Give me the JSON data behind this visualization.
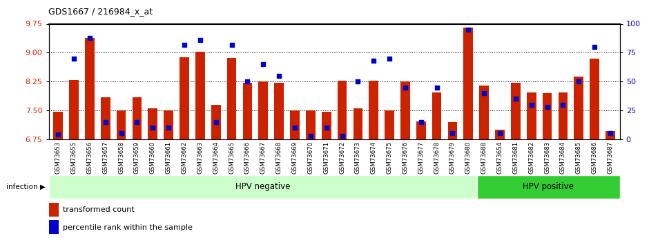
{
  "title": "GDS1667 / 216984_x_at",
  "samples": [
    "GSM73653",
    "GSM73655",
    "GSM73656",
    "GSM73657",
    "GSM73658",
    "GSM73659",
    "GSM73660",
    "GSM73661",
    "GSM73662",
    "GSM73663",
    "GSM73664",
    "GSM73665",
    "GSM73666",
    "GSM73667",
    "GSM73668",
    "GSM73669",
    "GSM73670",
    "GSM73671",
    "GSM73672",
    "GSM73673",
    "GSM73674",
    "GSM73675",
    "GSM73676",
    "GSM73677",
    "GSM73678",
    "GSM73679",
    "GSM73680",
    "GSM73688",
    "GSM73654",
    "GSM73681",
    "GSM73682",
    "GSM73683",
    "GSM73684",
    "GSM73685",
    "GSM73686",
    "GSM73687"
  ],
  "red_values": [
    7.47,
    8.28,
    9.38,
    7.84,
    7.5,
    7.84,
    7.55,
    7.5,
    8.88,
    9.02,
    7.65,
    8.87,
    8.22,
    8.25,
    8.22,
    7.5,
    7.5,
    7.47,
    8.27,
    7.55,
    8.27,
    7.5,
    8.25,
    7.22,
    7.97,
    7.2,
    9.65,
    8.15,
    7.0,
    8.22,
    7.97,
    7.95,
    7.97,
    8.38,
    8.85,
    6.97
  ],
  "blue_values": [
    4,
    70,
    88,
    15,
    5,
    15,
    10,
    10,
    82,
    86,
    15,
    82,
    50,
    65,
    55,
    10,
    3,
    10,
    3,
    50,
    68,
    70,
    45,
    15,
    45,
    5,
    95,
    40,
    5,
    35,
    30,
    28,
    30,
    50,
    80,
    5
  ],
  "hpv_negative_count": 27,
  "hpv_positive_count": 9,
  "ylim_left": [
    6.75,
    9.75
  ],
  "ylim_right": [
    0,
    100
  ],
  "yticks_left": [
    6.75,
    7.5,
    8.25,
    9.0,
    9.75
  ],
  "yticks_right": [
    0,
    25,
    50,
    75,
    100
  ],
  "bar_color": "#cc2200",
  "dot_color": "#0000cc",
  "bg_color_hpv_neg": "#ccffcc",
  "bg_color_hpv_pos": "#33cc33",
  "sample_bg_color": "#d8d8d8",
  "label_color_left": "#cc2200",
  "label_color_right": "#0000cc",
  "bar_width": 0.6,
  "legend_red_label": "transformed count",
  "legend_blue_label": "percentile rank within the sample",
  "infection_label": "infection",
  "hpv_neg_label": "HPV negative",
  "hpv_pos_label": "HPV positive"
}
